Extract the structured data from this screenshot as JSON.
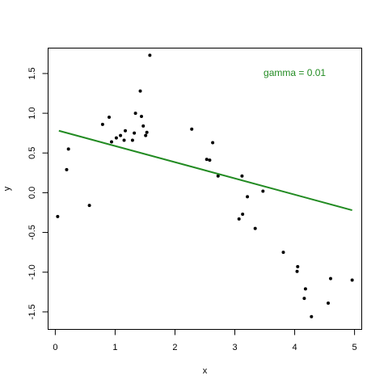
{
  "chart_data": {
    "type": "scatter",
    "xlabel": "x",
    "ylabel": "y",
    "xlim": [
      -0.12,
      5.12
    ],
    "ylim": [
      -1.72,
      1.82
    ],
    "x_ticks": [
      0,
      1,
      2,
      3,
      4,
      5
    ],
    "x_tick_labels": [
      "0",
      "1",
      "2",
      "3",
      "4",
      "5"
    ],
    "y_ticks": [
      -1.5,
      -1.0,
      -0.5,
      0.0,
      0.5,
      1.0,
      1.5
    ],
    "y_tick_labels": [
      "-1.5",
      "-1.0",
      "-0.5",
      "0.0",
      "0.5",
      "1.0",
      "1.5"
    ],
    "grid": false,
    "points": {
      "color": "#000000",
      "x": [
        0.04,
        0.19,
        0.22,
        0.57,
        0.79,
        0.9,
        0.94,
        1.02,
        1.09,
        1.15,
        1.17,
        1.29,
        1.32,
        1.34,
        1.42,
        1.44,
        1.47,
        1.51,
        1.53,
        1.58,
        2.28,
        2.53,
        2.58,
        2.63,
        2.72,
        3.07,
        3.12,
        3.13,
        3.21,
        3.34,
        3.47,
        3.81,
        4.04,
        4.05,
        4.16,
        4.18,
        4.28,
        4.56,
        4.6,
        4.96
      ],
      "y": [
        -0.3,
        0.29,
        0.55,
        -0.16,
        0.86,
        0.95,
        0.64,
        0.69,
        0.72,
        0.66,
        0.78,
        0.66,
        0.75,
        1.0,
        1.28,
        0.96,
        0.84,
        0.72,
        0.76,
        1.73,
        0.8,
        0.42,
        0.41,
        0.63,
        0.21,
        -0.33,
        0.21,
        -0.27,
        -0.05,
        -0.45,
        0.02,
        -0.75,
        -0.99,
        -0.93,
        -1.33,
        -1.21,
        -1.56,
        -1.39,
        -1.08,
        -1.1
      ]
    },
    "line": {
      "color": "#228b22",
      "x": [
        0.06,
        4.96
      ],
      "y": [
        0.78,
        -0.22
      ]
    },
    "annotation": {
      "text": "gamma = 0.01",
      "color": "#228b22",
      "x": 4.0,
      "y": 1.47
    }
  }
}
